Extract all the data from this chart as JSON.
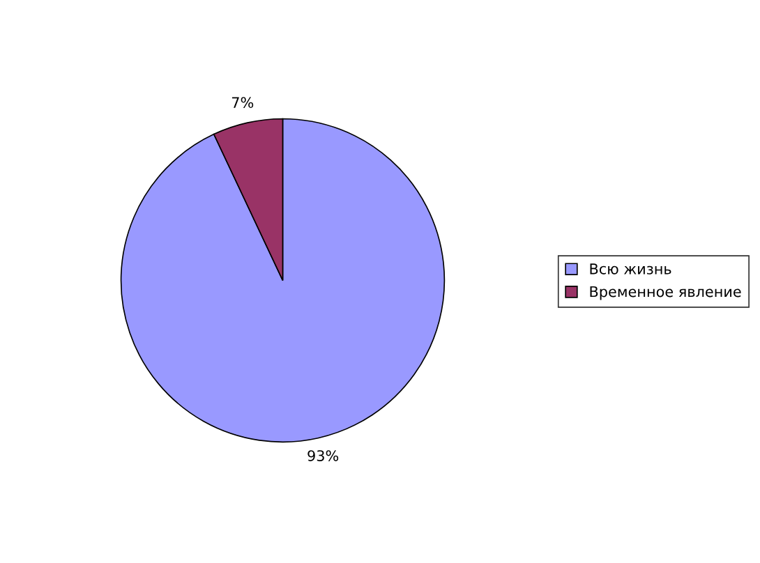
{
  "chart_data": {
    "type": "pie",
    "categories": [
      "Всю жизнь",
      "Временное явление"
    ],
    "values": [
      93,
      7
    ],
    "colors": [
      "#9999ff",
      "#993366"
    ],
    "value_labels": [
      "93%",
      "7%"
    ],
    "legend": "right"
  }
}
